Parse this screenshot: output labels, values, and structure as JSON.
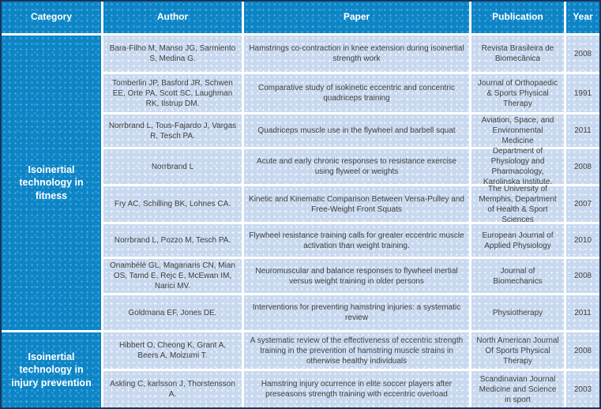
{
  "colors": {
    "header_blue": "#0d84c6",
    "row_light_blue": "#c8d9ef",
    "outer_border_navy": "#17365d",
    "header_text": "#ffffff",
    "body_text": "#3f3f3f"
  },
  "table": {
    "headers": {
      "category": "Category",
      "author": "Author",
      "paper": "Paper",
      "publication": "Publication",
      "year": "Year"
    },
    "groups": [
      {
        "category": "Isoinertial technology in fitness",
        "rows": [
          {
            "author": "Bara-Filho M, Manso JG, Sarmiento S, Medina G.",
            "paper": "Hamstrings co-contraction in knee extension during isoinertial strength work",
            "publication": "Revista Brasileira de Biomecânica",
            "year": "2008"
          },
          {
            "author": "Tomberlin JP, Basford JR, Schwen EE, Orte PA, Scott SC, Laughman RK, Ilstrup DM.",
            "paper": "Comparative study of isokinetic eccentric and concentric quadriceps training",
            "publication": "Journal of Orthopaedic & Sports Physical Therapy",
            "year": "1991"
          },
          {
            "author": "Norrbrand L, Tous-Fajardo J, Vargas R, Tesch PA.",
            "paper": "Quadriceps muscle use in the flywheel and barbell squat",
            "publication": "Aviation, Space, and Environmental Medicine",
            "year": "2011"
          },
          {
            "author": "Norrbrand L",
            "paper": "Acute and early chronic responses to resistance exercise using flyweel or weights",
            "publication": "Department of Physiology and Pharmacology, Karolinska Institute.",
            "year": "2008"
          },
          {
            "author": "Fry AC, Schilling BK, Lohnes CA.",
            "paper": "Kinetic and Kinematic Comparison Between Versa-Pulley and Free-Weight Front Squats",
            "publication": "The University of Memphis, Department of Health & Sport Sciences",
            "year": "2007"
          },
          {
            "author": "Norrbrand L, Pozzo M, Tesch PA.",
            "paper": "Flywheel resistance training calls for greater eccentric muscle activation than weight training.",
            "publication": "European Journal of Applied Physiology",
            "year": "2010"
          },
          {
            "author": "Onambélé GL, Maganaris CN, Mian OS, Tamd E, Rejc E, McEwan IM, Narici MV.",
            "paper": "Neuromuscular and balance responses to flywheel inertial versus weight training in older persons",
            "publication": "Journal of Biomechanics",
            "year": "2008"
          },
          {
            "author": "Goldmana EF, Jones DE.",
            "paper": "Interventions for preventing hamstring injuries: a systematic review",
            "publication": "Physiotherapy",
            "year": "2011"
          }
        ]
      },
      {
        "category": "Isoinertial technology in injury prevention",
        "rows": [
          {
            "author": "Hibbert O, Cheong K, Grant A, Beers A, Moizumi T.",
            "paper": "A systematic review of the effectiveness of eccentric strength training in the prevention of hamstring muscle strains in otherwise healthy individuals",
            "publication": "North American Journal Of Sports Physical Therapy",
            "year": "2008"
          },
          {
            "author": "Askling C, karlsson J, Thorstensson A.",
            "paper": "Hamstring injury ocurrence in elite soccer players after preseasons strength training with eccentric overload",
            "publication": "Scandinavian Journal Medicine and Science in sport",
            "year": "2003"
          }
        ]
      }
    ]
  }
}
